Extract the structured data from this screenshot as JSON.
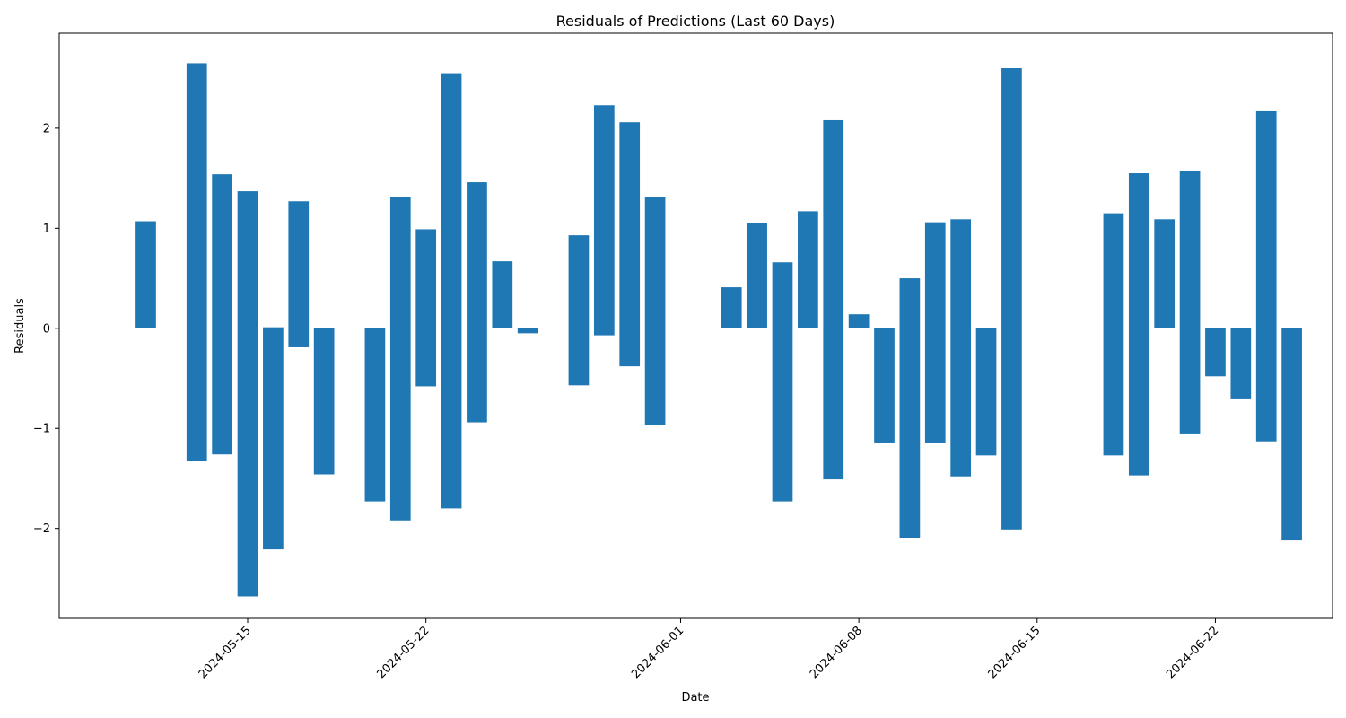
{
  "chart_data": {
    "type": "bar",
    "title": "Residuals of Predictions (Last 60 Days)",
    "xlabel": "Date",
    "ylabel": "Residuals",
    "ylim": [
      -2.9,
      2.95
    ],
    "xlim": [
      "2024-05-08",
      "2024-06-26"
    ],
    "grid": false,
    "color": "#1f77b4",
    "x_ticks": [
      "2024-05-15",
      "2024-05-22",
      "2024-06-01",
      "2024-06-08",
      "2024-06-15",
      "2024-06-22"
    ],
    "y_ticks": [
      {
        "value": -2,
        "label": "−2"
      },
      {
        "value": -1,
        "label": "−1"
      },
      {
        "value": 0,
        "label": "0"
      },
      {
        "value": 1,
        "label": "1"
      },
      {
        "value": 2,
        "label": "2"
      }
    ],
    "bars": [
      {
        "date": "2024-05-11",
        "bottom": 0.0,
        "top": 1.07
      },
      {
        "date": "2024-05-13",
        "bottom": -1.33,
        "top": 2.65
      },
      {
        "date": "2024-05-14",
        "bottom": -1.26,
        "top": 1.54
      },
      {
        "date": "2024-05-15",
        "bottom": -2.68,
        "top": 1.37
      },
      {
        "date": "2024-05-16",
        "bottom": -2.21,
        "top": 0.01
      },
      {
        "date": "2024-05-17",
        "bottom": -0.19,
        "top": 1.27
      },
      {
        "date": "2024-05-18",
        "bottom": -1.46,
        "top": 0.0
      },
      {
        "date": "2024-05-20",
        "bottom": -1.73,
        "top": 0.0
      },
      {
        "date": "2024-05-21",
        "bottom": -1.92,
        "top": 1.31
      },
      {
        "date": "2024-05-22",
        "bottom": -0.58,
        "top": 0.99
      },
      {
        "date": "2024-05-23",
        "bottom": -1.8,
        "top": 2.55
      },
      {
        "date": "2024-05-24",
        "bottom": -0.94,
        "top": 1.46
      },
      {
        "date": "2024-05-25",
        "bottom": 0.0,
        "top": 0.67
      },
      {
        "date": "2024-05-26",
        "bottom": -0.05,
        "top": 0.0
      },
      {
        "date": "2024-05-28",
        "bottom": -0.57,
        "top": 0.93
      },
      {
        "date": "2024-05-29",
        "bottom": -0.07,
        "top": 2.23
      },
      {
        "date": "2024-05-30",
        "bottom": -0.38,
        "top": 2.06
      },
      {
        "date": "2024-05-31",
        "bottom": -0.97,
        "top": 1.31
      },
      {
        "date": "2024-06-03",
        "bottom": 0.0,
        "top": 0.41
      },
      {
        "date": "2024-06-04",
        "bottom": 0.0,
        "top": 1.05
      },
      {
        "date": "2024-06-05",
        "bottom": -1.73,
        "top": 0.66
      },
      {
        "date": "2024-06-06",
        "bottom": 0.0,
        "top": 1.17
      },
      {
        "date": "2024-06-07",
        "bottom": -1.51,
        "top": 2.08
      },
      {
        "date": "2024-06-08",
        "bottom": 0.0,
        "top": 0.14
      },
      {
        "date": "2024-06-09",
        "bottom": -1.15,
        "top": 0.0
      },
      {
        "date": "2024-06-10",
        "bottom": -2.1,
        "top": 0.5
      },
      {
        "date": "2024-06-11",
        "bottom": -1.15,
        "top": 1.06
      },
      {
        "date": "2024-06-12",
        "bottom": -1.48,
        "top": 1.09
      },
      {
        "date": "2024-06-13",
        "bottom": -1.27,
        "top": 0.0
      },
      {
        "date": "2024-06-14",
        "bottom": -2.01,
        "top": 2.6
      },
      {
        "date": "2024-06-18",
        "bottom": -1.27,
        "top": 1.15
      },
      {
        "date": "2024-06-19",
        "bottom": -1.47,
        "top": 1.55
      },
      {
        "date": "2024-06-20",
        "bottom": 0.0,
        "top": 1.09
      },
      {
        "date": "2024-06-21",
        "bottom": -1.06,
        "top": 1.57
      },
      {
        "date": "2024-06-22",
        "bottom": -0.48,
        "top": 0.0
      },
      {
        "date": "2024-06-23",
        "bottom": -0.71,
        "top": 0.0
      },
      {
        "date": "2024-06-24",
        "bottom": -1.13,
        "top": 2.17
      },
      {
        "date": "2024-06-25",
        "bottom": -2.12,
        "top": 0.0
      }
    ]
  }
}
